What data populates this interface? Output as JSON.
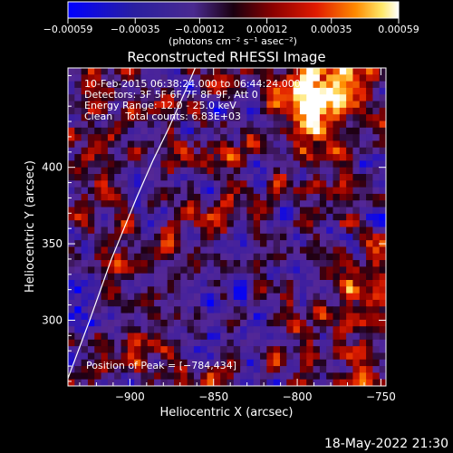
{
  "chart_data": {
    "type": "heatmap",
    "title": "Reconstructed RHESSI Image",
    "xlabel": "Heliocentric X (arcsec)",
    "ylabel": "Heliocentric Y (arcsec)",
    "xlim": [
      -937,
      -747
    ],
    "ylim": [
      257,
      465
    ],
    "x_ticks": [
      -900,
      -850,
      -800,
      -750
    ],
    "x_tick_labels": [
      "−900",
      "−850",
      "−800",
      "−750"
    ],
    "y_ticks": [
      300,
      350,
      400
    ],
    "y_tick_labels": [
      "300",
      "350",
      "400"
    ],
    "colorbar": {
      "range": [
        -0.00059,
        0.00059
      ],
      "ticks": [
        -0.00059,
        -0.00035,
        -0.00012,
        0.00012,
        0.00035,
        0.00059
      ],
      "tick_labels": [
        "−0.00059",
        "−0.00035",
        "−0.00012",
        "0.00012",
        "0.00035",
        "0.00059"
      ],
      "unit_label": "(photons cm⁻² s⁻¹ asec⁻²)",
      "colors": [
        "#0000ff",
        "#3a1f8f",
        "#5a2aa0",
        "#200012",
        "#8b0000",
        "#d21a00",
        "#ff7a00",
        "#ffe36a",
        "#ffffff"
      ]
    },
    "annotations": [
      "10-Feb-2015 06:38:24.000 to 06:44:24.000",
      "Detectors: 3F 5F 6F 7F 8F 9F, Att 0",
      "Energy Range: 12.0 - 25.0 keV",
      "Clean    Total counts: 6.83E+03"
    ],
    "peak_label": "Position of Peak = [−784,434]",
    "peak": [
      -784,
      434
    ],
    "limb_curve": [
      [
        -937,
        262
      ],
      [
        -924,
        300
      ],
      [
        -911,
        340
      ],
      [
        -896,
        380
      ],
      [
        -886,
        405
      ],
      [
        -877,
        425
      ],
      [
        -866,
        452
      ],
      [
        -861,
        465
      ]
    ],
    "grid": false
  },
  "timestamp": "18-May-2022 21:30"
}
